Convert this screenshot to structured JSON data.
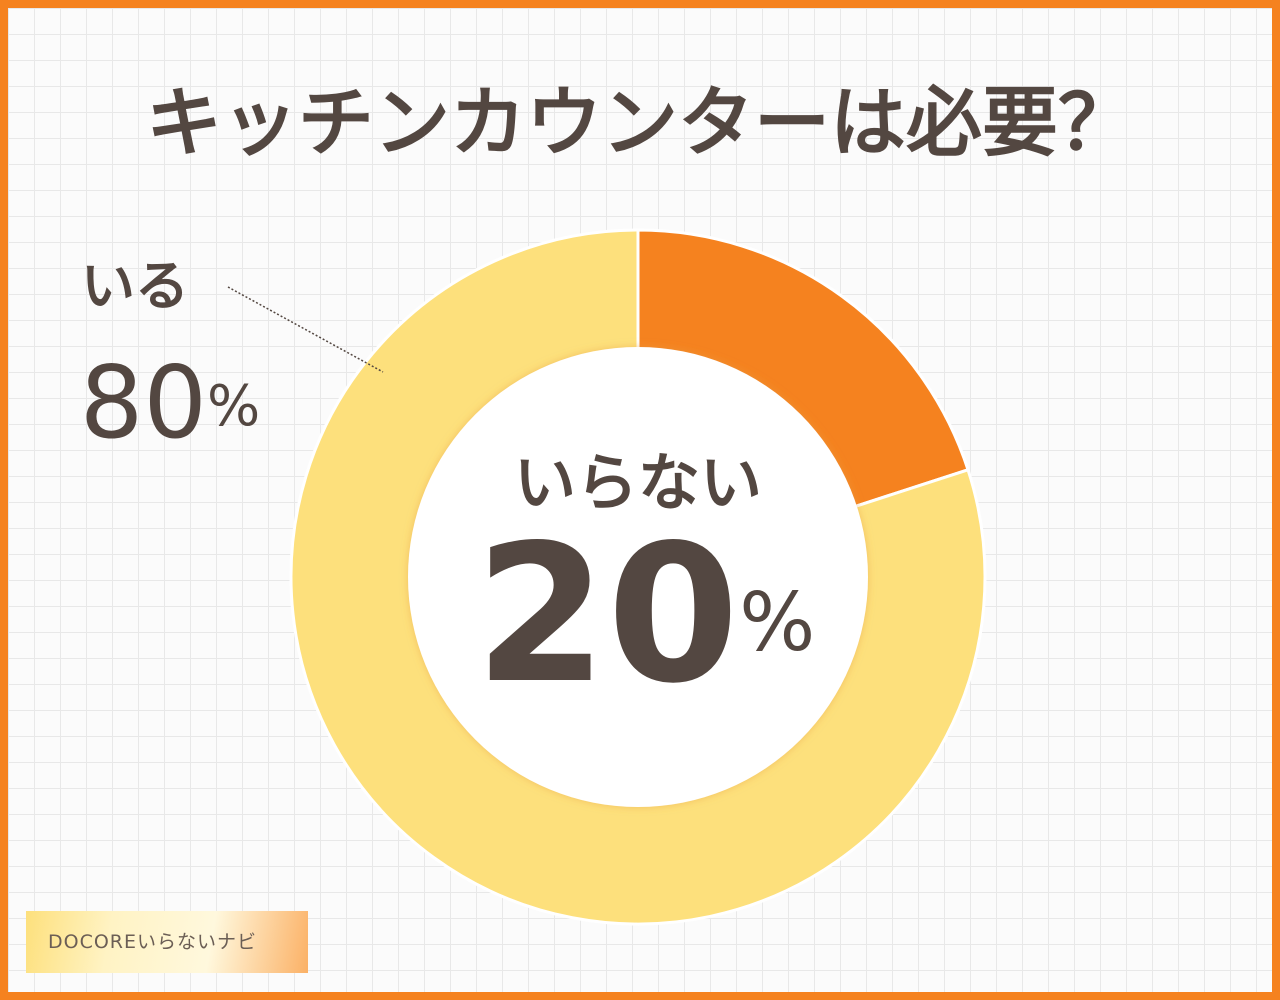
{
  "chart_data": {
    "type": "donut",
    "title": "キッチンカウンターは必要？",
    "categories": [
      "いらない",
      "いる"
    ],
    "values": [
      20,
      80
    ],
    "value_labels": [
      "20%",
      "80%"
    ],
    "colors": [
      "#f5821f",
      "#fde07c"
    ]
  },
  "footer": {
    "brand": "DOCOREいらないナビ"
  }
}
